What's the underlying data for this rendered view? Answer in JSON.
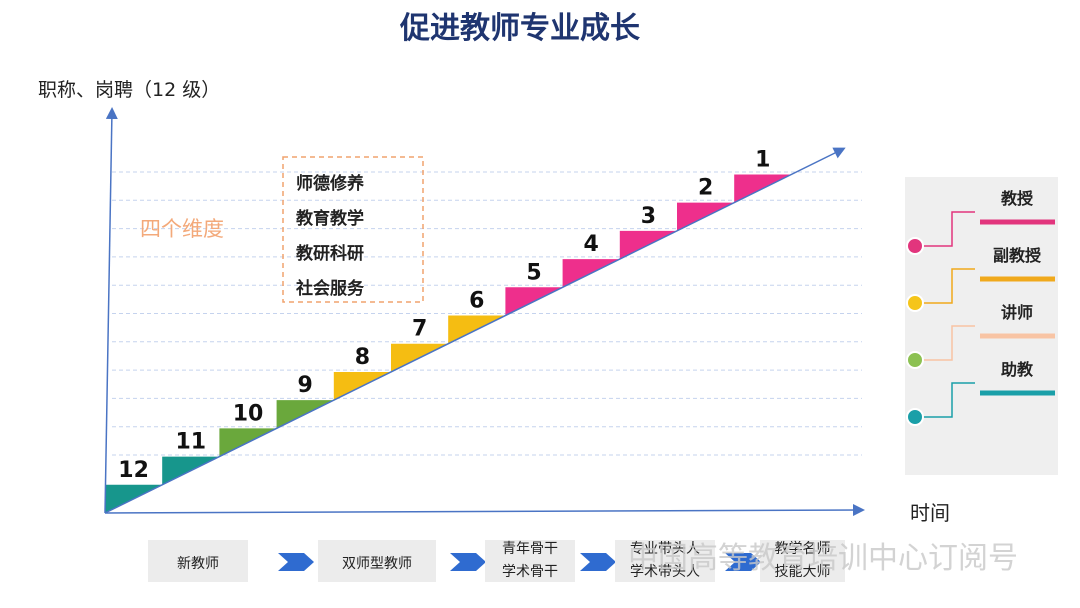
{
  "title": "促进教师专业成长",
  "y_axis_label": "职称、岗聘（12 级）",
  "x_axis_label": "时间",
  "steps": [
    "12",
    "11",
    "10",
    "9",
    "8",
    "7",
    "6",
    "5",
    "4",
    "3",
    "2",
    "1"
  ],
  "dimensions": {
    "label": "四个维度",
    "items": [
      "师德修养",
      "教育教学",
      "教研科研",
      "社会服务"
    ]
  },
  "ranks": [
    {
      "label": "教授",
      "color": "#e2357d",
      "dot": "#e2357d"
    },
    {
      "label": "副教授",
      "color": "#f0a91c",
      "dot": "#f5c51a"
    },
    {
      "label": "讲师",
      "color": "#f8c4a4",
      "dot": "#8cc152"
    },
    {
      "label": "助教",
      "color": "#1a9fa8",
      "dot": "#1a9fa8"
    }
  ],
  "path": [
    [
      "新教师"
    ],
    [
      "双师型教师"
    ],
    [
      "青年骨干",
      "学术骨干"
    ],
    [
      "专业带头人",
      "学术带头人"
    ],
    [
      "教学名师",
      "技能大师"
    ]
  ],
  "watermark": "中国高等教育培训中心订阅号"
}
